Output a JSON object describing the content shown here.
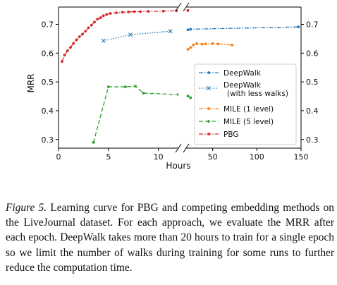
{
  "chart_data": {
    "type": "line",
    "xlabel": "Hours",
    "ylabel": "MRR",
    "ylim": [
      0.27,
      0.76
    ],
    "yticks": [
      0.3,
      0.4,
      0.5,
      0.6,
      0.7
    ],
    "ytick_labels": [
      "0.3",
      "0.4",
      "0.5",
      "0.6",
      "0.7"
    ],
    "x_axis": "broken",
    "left_segment": {
      "xlim": [
        0,
        12
      ],
      "ticks": [
        0,
        5,
        10
      ],
      "tick_labels": [
        "0",
        "5",
        "10"
      ]
    },
    "right_segment": {
      "xlim": [
        20,
        150
      ],
      "ticks": [
        50,
        100,
        150
      ],
      "tick_labels": [
        "50",
        "100",
        "150"
      ]
    },
    "legend_position": "right",
    "series": [
      {
        "name": "DeepWalk",
        "color": "#1f77b4",
        "linestyle": "dashdot",
        "marker": "dot",
        "points": [
          [
            22,
            0.681
          ],
          [
            25,
            0.683
          ],
          [
            147,
            0.691
          ]
        ]
      },
      {
        "name": "DeepWalk\n(with less walks)",
        "color": "#1f77b4",
        "linestyle": "dotted",
        "marker": "x",
        "points": [
          [
            4.5,
            0.643
          ],
          [
            7.2,
            0.664
          ],
          [
            11.2,
            0.676
          ]
        ]
      },
      {
        "name": "MILE (1 level)",
        "color": "#ff7f0e",
        "linestyle": "dashdot",
        "marker": "dot",
        "points": [
          [
            22,
            0.613
          ],
          [
            25,
            0.62
          ],
          [
            28,
            0.628
          ],
          [
            32,
            0.633
          ],
          [
            38,
            0.631
          ],
          [
            42,
            0.632
          ],
          [
            50,
            0.633
          ],
          [
            56,
            0.632
          ],
          [
            72,
            0.628
          ]
        ]
      },
      {
        "name": "MILE (5 level)",
        "color": "#2ca02c",
        "linestyle": "dashed",
        "marker": "dot",
        "points": [
          [
            3.5,
            0.29
          ],
          [
            5.0,
            0.483
          ],
          [
            6.7,
            0.483
          ],
          [
            7.7,
            0.485
          ],
          [
            8.5,
            0.461
          ],
          [
            12,
            0.456
          ],
          [
            22,
            0.451
          ],
          [
            25,
            0.445
          ]
        ]
      },
      {
        "name": "PBG",
        "color": "#d62728",
        "linestyle": "dashdot",
        "marker": "dot",
        "points": [
          [
            0.35,
            0.571
          ],
          [
            0.6,
            0.593
          ],
          [
            0.9,
            0.608
          ],
          [
            1.2,
            0.62
          ],
          [
            1.5,
            0.634
          ],
          [
            1.8,
            0.646
          ],
          [
            2.1,
            0.657
          ],
          [
            2.4,
            0.666
          ],
          [
            2.7,
            0.676
          ],
          [
            3.0,
            0.688
          ],
          [
            3.3,
            0.697
          ],
          [
            3.6,
            0.708
          ],
          [
            3.9,
            0.718
          ],
          [
            4.2,
            0.723
          ],
          [
            4.5,
            0.73
          ],
          [
            4.8,
            0.734
          ],
          [
            5.2,
            0.738
          ],
          [
            5.8,
            0.74
          ],
          [
            6.4,
            0.742
          ],
          [
            7.0,
            0.743
          ],
          [
            7.6,
            0.744
          ],
          [
            8.2,
            0.744
          ],
          [
            9.0,
            0.745
          ],
          [
            10.5,
            0.746
          ],
          [
            11.8,
            0.747
          ],
          [
            22,
            0.748
          ]
        ]
      }
    ]
  },
  "caption": {
    "label": "Figure 5.",
    "text": "Learning curve for PBG and competing embedding methods on the LiveJournal dataset. For each approach, we evaluate the MRR after each epoch. DeepWalk takes more than 20 hours to train for a single epoch so we limit the number of walks during training for some runs to further reduce the computation time."
  }
}
